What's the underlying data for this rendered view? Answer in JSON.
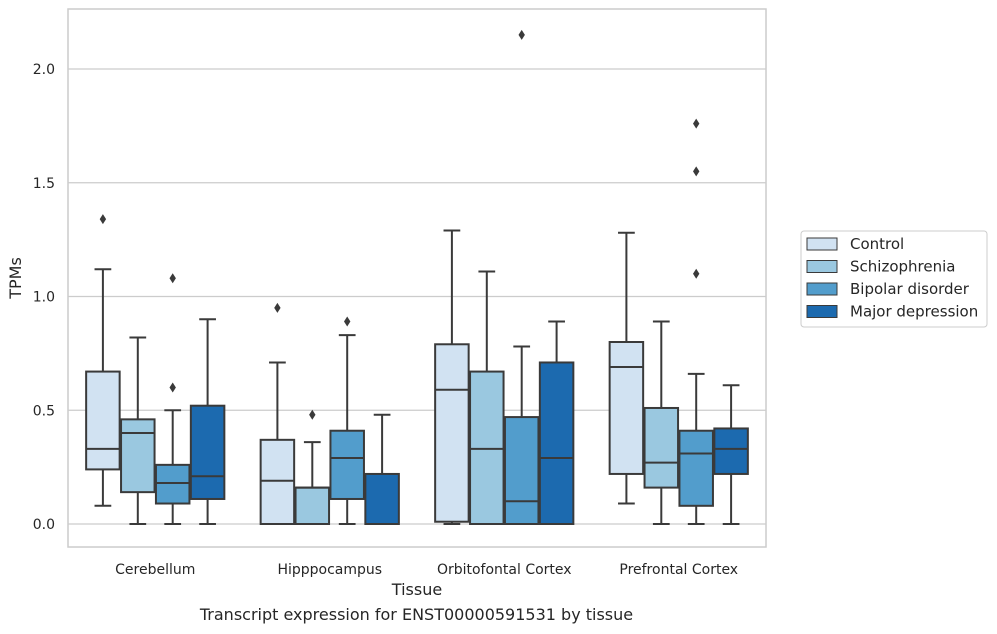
{
  "caption": "Transcript expression for ENST00000591531 by tissue",
  "chart_data": {
    "type": "box",
    "xlabel": "Tissue",
    "ylabel": "TPMs",
    "ylim": [
      -0.1,
      2.27
    ],
    "yticks": [
      0.0,
      0.5,
      1.0,
      1.5,
      2.0
    ],
    "ytick_labels": [
      "0.0",
      "0.5",
      "1.0",
      "1.5",
      "2.0"
    ],
    "grid": "horizontal",
    "legend_position": "right",
    "categories": [
      "Cerebellum",
      "Hipppocampus",
      "Orbitofontal Cortex",
      "Prefrontal Cortex"
    ],
    "series": [
      {
        "name": "Control",
        "color": "#d1e2f2",
        "boxes": [
          {
            "whislo": 0.08,
            "q1": 0.24,
            "med": 0.33,
            "q3": 0.67,
            "whishi": 1.12,
            "fliers": [
              1.34
            ]
          },
          {
            "whislo": 0.0,
            "q1": 0.0,
            "med": 0.19,
            "q3": 0.37,
            "whishi": 0.71,
            "fliers": [
              0.95
            ]
          },
          {
            "whislo": 0.0,
            "q1": 0.01,
            "med": 0.59,
            "q3": 0.79,
            "whishi": 1.29,
            "fliers": []
          },
          {
            "whislo": 0.09,
            "q1": 0.22,
            "med": 0.69,
            "q3": 0.8,
            "whishi": 1.28,
            "fliers": []
          }
        ]
      },
      {
        "name": "Schizophrenia",
        "color": "#9ac8e0",
        "boxes": [
          {
            "whislo": 0.0,
            "q1": 0.14,
            "med": 0.4,
            "q3": 0.46,
            "whishi": 0.82,
            "fliers": []
          },
          {
            "whislo": 0.0,
            "q1": 0.0,
            "med": 0.16,
            "q3": 0.16,
            "whishi": 0.36,
            "fliers": [
              0.48
            ]
          },
          {
            "whislo": 0.0,
            "q1": 0.0,
            "med": 0.33,
            "q3": 0.67,
            "whishi": 1.11,
            "fliers": []
          },
          {
            "whislo": 0.0,
            "q1": 0.16,
            "med": 0.27,
            "q3": 0.51,
            "whishi": 0.89,
            "fliers": []
          }
        ]
      },
      {
        "name": "Bipolar disorder",
        "color": "#529dcc",
        "boxes": [
          {
            "whislo": 0.0,
            "q1": 0.09,
            "med": 0.18,
            "q3": 0.26,
            "whishi": 0.5,
            "fliers": [
              0.6,
              1.08
            ]
          },
          {
            "whislo": 0.0,
            "q1": 0.11,
            "med": 0.29,
            "q3": 0.41,
            "whishi": 0.83,
            "fliers": [
              0.89
            ]
          },
          {
            "whislo": 0.0,
            "q1": 0.0,
            "med": 0.1,
            "q3": 0.47,
            "whishi": 0.78,
            "fliers": [
              2.15
            ]
          },
          {
            "whislo": 0.0,
            "q1": 0.08,
            "med": 0.31,
            "q3": 0.41,
            "whishi": 0.66,
            "fliers": [
              1.1,
              1.55,
              1.76
            ]
          }
        ]
      },
      {
        "name": "Major depression",
        "color": "#1c6aaf",
        "boxes": [
          {
            "whislo": 0.0,
            "q1": 0.11,
            "med": 0.21,
            "q3": 0.52,
            "whishi": 0.9,
            "fliers": []
          },
          {
            "whislo": 0.0,
            "q1": 0.0,
            "med": 0.0,
            "q3": 0.22,
            "whishi": 0.48,
            "fliers": []
          },
          {
            "whislo": 0.0,
            "q1": 0.0,
            "med": 0.29,
            "q3": 0.71,
            "whishi": 0.89,
            "fliers": []
          },
          {
            "whislo": 0.0,
            "q1": 0.22,
            "med": 0.33,
            "q3": 0.42,
            "whishi": 0.61,
            "fliers": []
          }
        ]
      }
    ]
  }
}
